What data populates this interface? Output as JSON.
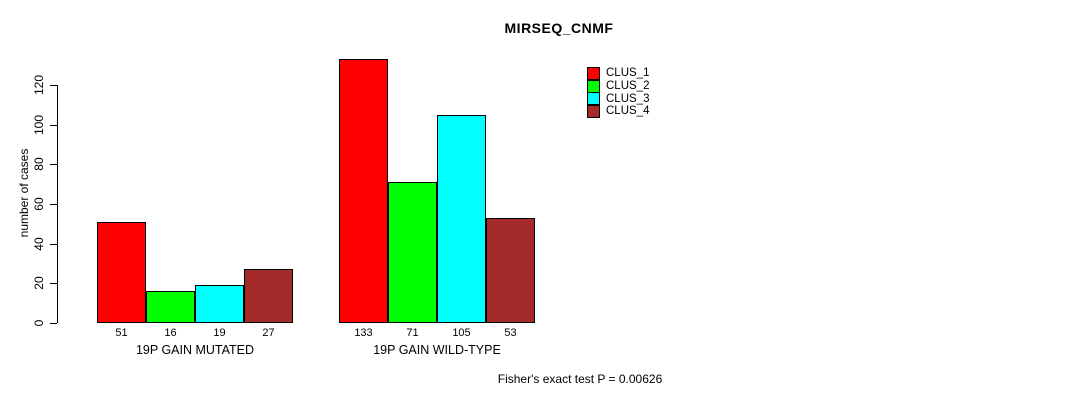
{
  "title": "MIRSEQ_CNMF",
  "footer": "Fisher's exact test P = 0.00626",
  "chart_data": {
    "type": "bar",
    "title": "MIRSEQ_CNMF",
    "xlabel": "",
    "ylabel": "number of cases",
    "categories": [
      "19P GAIN MUTATED",
      "19P GAIN WILD-TYPE"
    ],
    "series": [
      {
        "name": "CLUS_1",
        "color": "#FF0000",
        "values": [
          51,
          133
        ]
      },
      {
        "name": "CLUS_2",
        "color": "#00FF00",
        "values": [
          16,
          71
        ]
      },
      {
        "name": "CLUS_3",
        "color": "#00FFFF",
        "values": [
          19,
          105
        ]
      },
      {
        "name": "CLUS_4",
        "color": "#A52A2A",
        "values": [
          27,
          53
        ]
      }
    ],
    "yticks": [
      0,
      20,
      40,
      60,
      80,
      100,
      120
    ],
    "ylim": [
      0,
      135
    ],
    "bar_value_labels_shown": true,
    "grid": false,
    "legend_position": "top-right",
    "annotation": "Fisher's exact test P = 0.00626"
  }
}
